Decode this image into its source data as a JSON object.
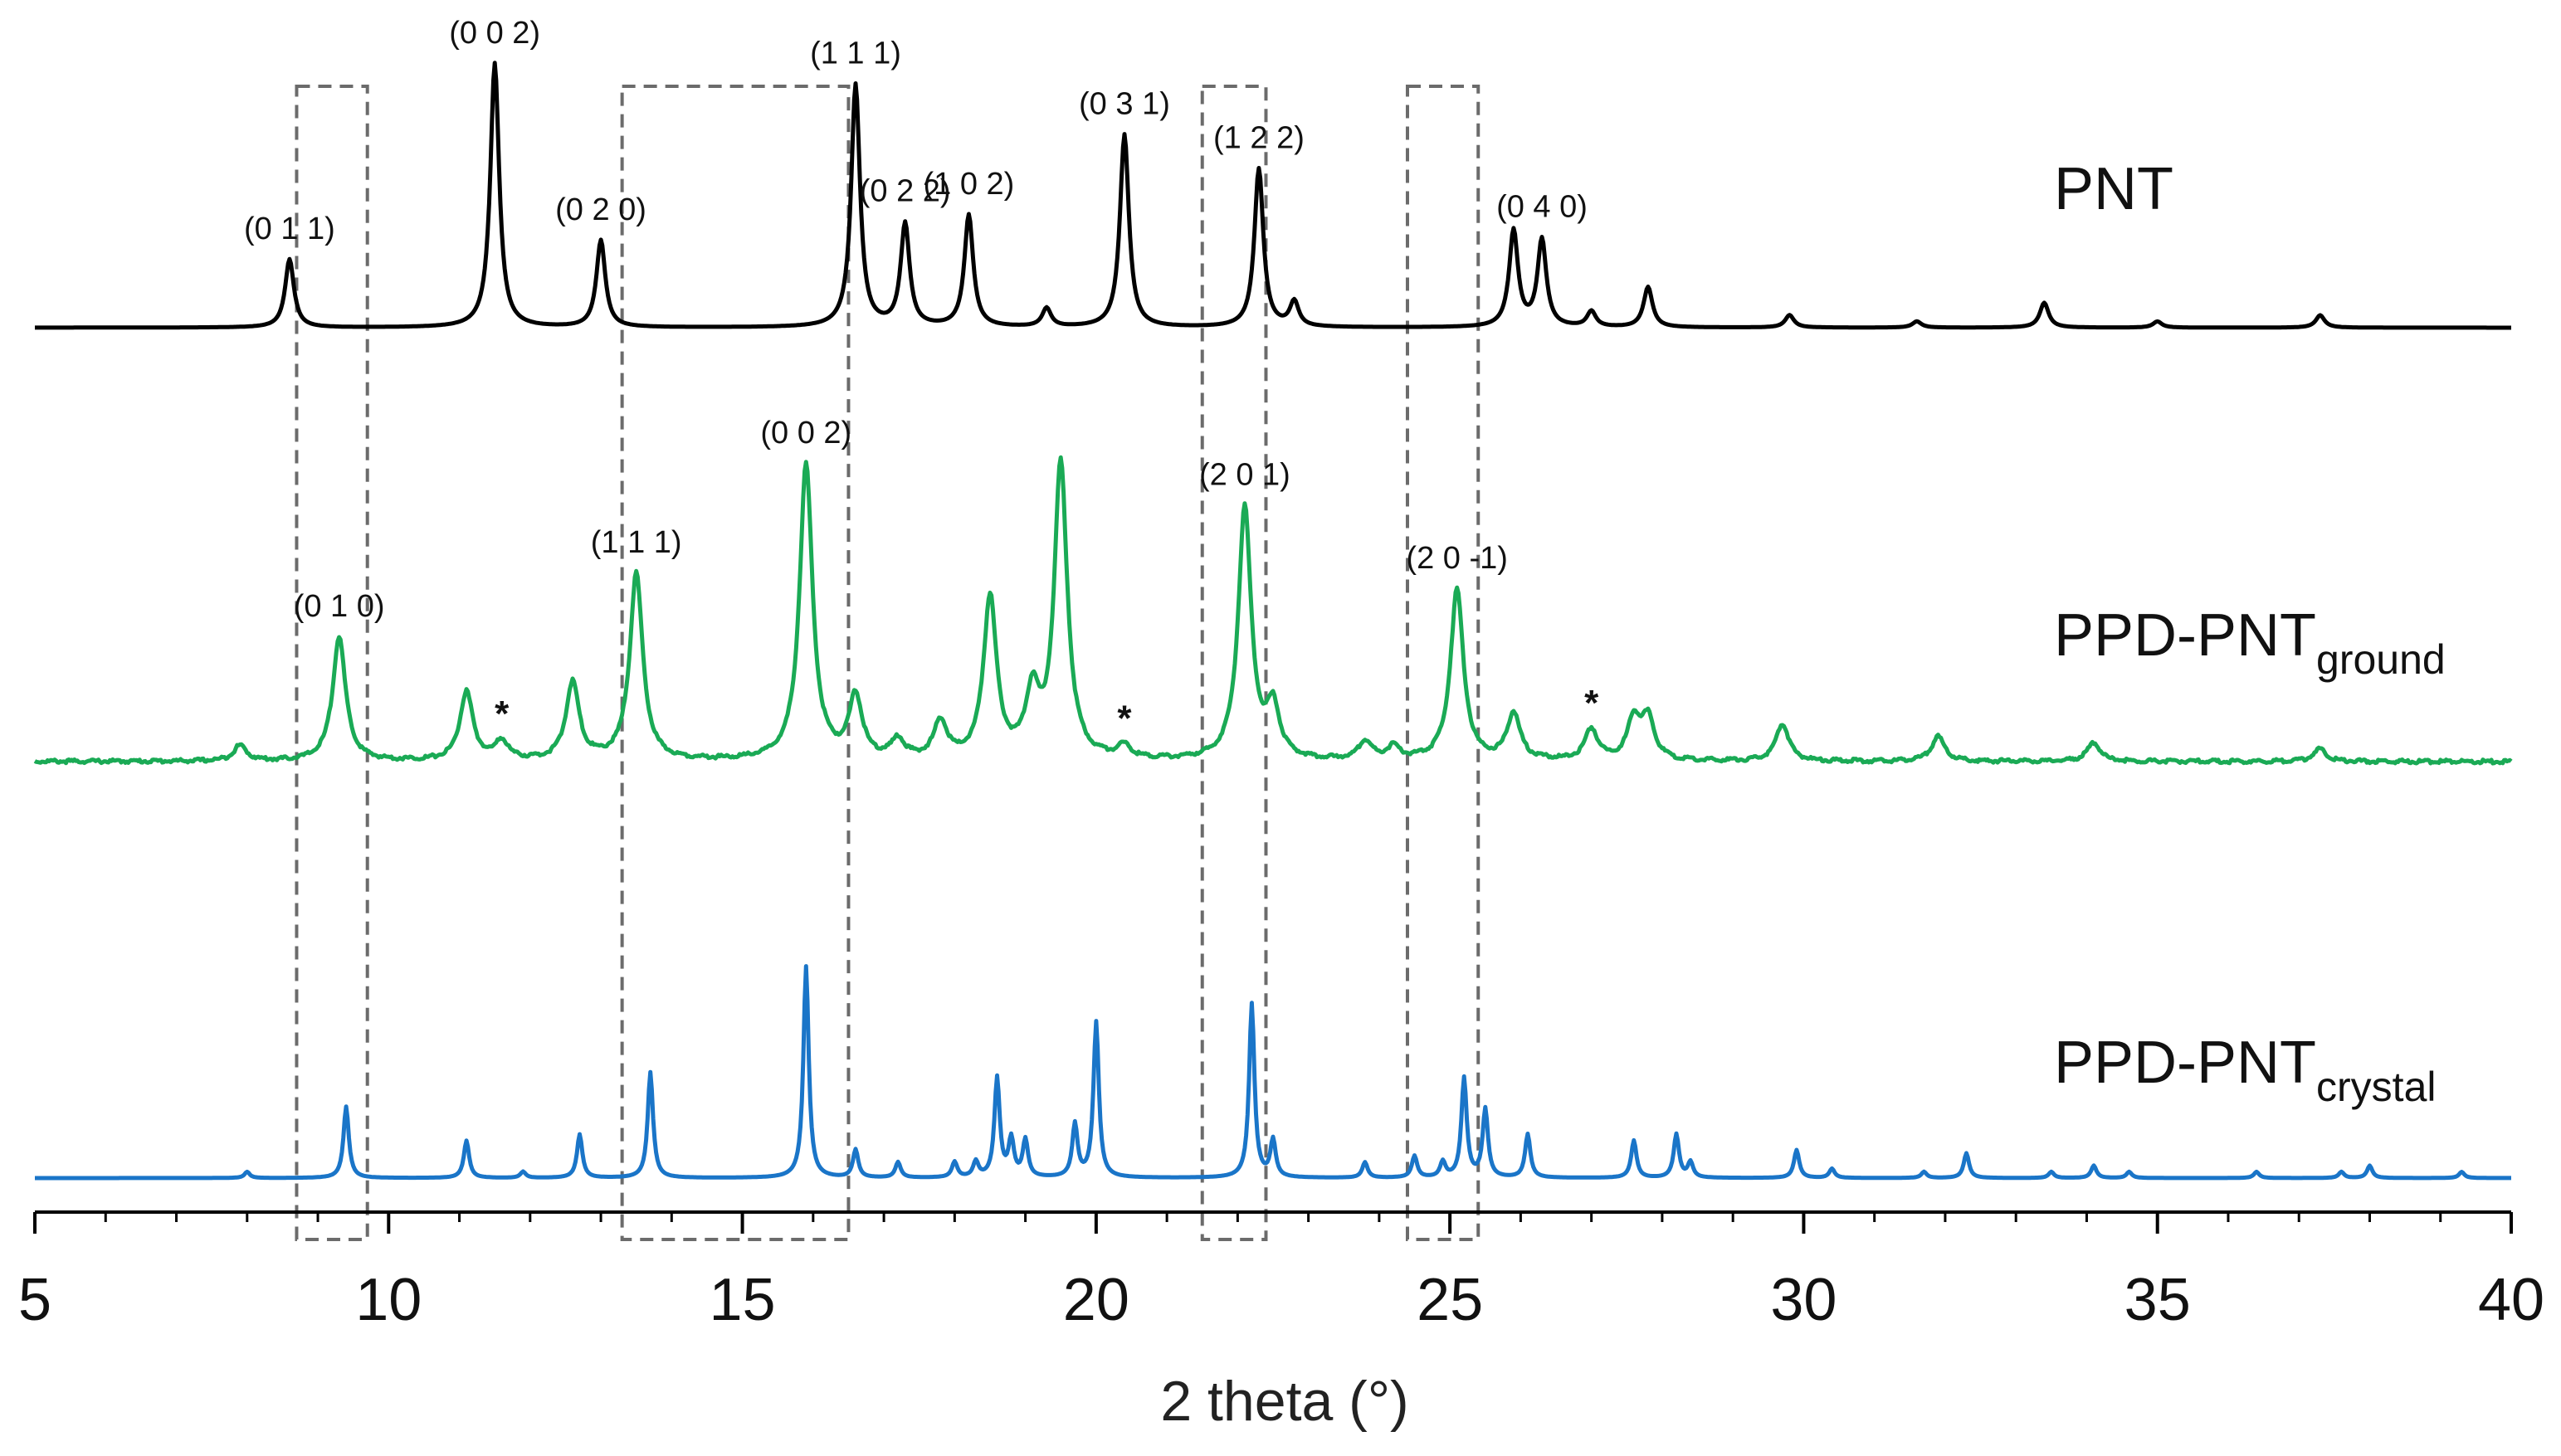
{
  "chart_data": {
    "type": "line",
    "title": "",
    "xlabel": "2 theta (°)",
    "ylabel": "",
    "xlim": [
      5,
      40
    ],
    "xticks": [
      5,
      10,
      15,
      20,
      25,
      30,
      35,
      40
    ],
    "grid": false,
    "legend": "none",
    "highlight_ranges": [
      [
        8.7,
        9.7
      ],
      [
        13.3,
        16.5
      ],
      [
        21.5,
        22.4
      ],
      [
        24.4,
        25.4
      ]
    ],
    "series": [
      {
        "name": "PNT",
        "name_sub": "",
        "color": "#000000",
        "peaks": [
          [
            8.6,
            0.22
          ],
          [
            11.5,
            0.85
          ],
          [
            13.0,
            0.28
          ],
          [
            16.6,
            0.78
          ],
          [
            17.3,
            0.33
          ],
          [
            18.2,
            0.36
          ],
          [
            19.3,
            0.06
          ],
          [
            20.4,
            0.62
          ],
          [
            22.3,
            0.51
          ],
          [
            22.8,
            0.08
          ],
          [
            25.9,
            0.31
          ],
          [
            26.3,
            0.28
          ],
          [
            27.0,
            0.05
          ],
          [
            27.8,
            0.13
          ],
          [
            29.8,
            0.04
          ],
          [
            31.6,
            0.02
          ],
          [
            33.4,
            0.08
          ],
          [
            35.0,
            0.02
          ],
          [
            37.3,
            0.04
          ]
        ],
        "labels": [
          {
            "text": "(0 1 1)",
            "x": 8.6
          },
          {
            "text": "(0 0 2)",
            "x": 11.5
          },
          {
            "text": "(0 2 0)",
            "x": 13.0
          },
          {
            "text": "(1 1 1)",
            "x": 16.6
          },
          {
            "text": "(0 2 2)",
            "x": 17.3
          },
          {
            "text": "(1 0 2)",
            "x": 18.2
          },
          {
            "text": "(0 3 1)",
            "x": 20.4
          },
          {
            "text": "(1 2 2)",
            "x": 22.3
          },
          {
            "text": "(0 4 0)",
            "x": 26.3
          }
        ]
      },
      {
        "name": "PPD-PNT",
        "name_sub": "ground",
        "color": "#1aaa55",
        "peaks": [
          [
            7.9,
            0.05
          ],
          [
            9.3,
            0.4
          ],
          [
            11.1,
            0.22
          ],
          [
            11.6,
            0.06
          ],
          [
            12.6,
            0.25
          ],
          [
            13.5,
            0.6
          ],
          [
            15.9,
            0.95
          ],
          [
            16.6,
            0.2
          ],
          [
            17.2,
            0.06
          ],
          [
            17.8,
            0.12
          ],
          [
            18.5,
            0.52
          ],
          [
            19.1,
            0.2
          ],
          [
            19.5,
            0.95
          ],
          [
            20.4,
            0.04
          ],
          [
            22.1,
            0.81
          ],
          [
            22.5,
            0.16
          ],
          [
            23.8,
            0.06
          ],
          [
            24.2,
            0.04
          ],
          [
            25.1,
            0.55
          ],
          [
            25.9,
            0.15
          ],
          [
            27.0,
            0.1
          ],
          [
            27.6,
            0.13
          ],
          [
            27.8,
            0.13
          ],
          [
            29.7,
            0.12
          ],
          [
            31.9,
            0.08
          ],
          [
            34.1,
            0.06
          ],
          [
            37.3,
            0.04
          ]
        ],
        "labels": [
          {
            "text": "(0 1 0)",
            "x": 9.3
          },
          {
            "text": "(1 1 1)",
            "x": 13.5
          },
          {
            "text": "(0 0 2)",
            "x": 15.9
          },
          {
            "text": "(2 0 1)",
            "x": 22.1
          },
          {
            "text": "(2 0 -1)",
            "x": 25.1
          }
        ],
        "markers": [
          {
            "text": "*",
            "x": 11.6
          },
          {
            "text": "*",
            "x": 20.4
          },
          {
            "text": "*",
            "x": 27.0
          }
        ]
      },
      {
        "name": "PPD-PNT",
        "name_sub": "crystal",
        "color": "#1a75c8",
        "peaks": [
          [
            8.0,
            0.02
          ],
          [
            9.4,
            0.23
          ],
          [
            11.1,
            0.12
          ],
          [
            11.9,
            0.02
          ],
          [
            12.7,
            0.14
          ],
          [
            13.7,
            0.34
          ],
          [
            15.9,
            0.68
          ],
          [
            16.6,
            0.09
          ],
          [
            17.2,
            0.05
          ],
          [
            18.0,
            0.05
          ],
          [
            18.3,
            0.05
          ],
          [
            18.6,
            0.32
          ],
          [
            18.8,
            0.12
          ],
          [
            19.0,
            0.12
          ],
          [
            19.7,
            0.17
          ],
          [
            20.0,
            0.5
          ],
          [
            22.2,
            0.56
          ],
          [
            22.5,
            0.12
          ],
          [
            23.8,
            0.05
          ],
          [
            24.5,
            0.07
          ],
          [
            24.9,
            0.05
          ],
          [
            25.2,
            0.32
          ],
          [
            25.5,
            0.22
          ],
          [
            26.1,
            0.14
          ],
          [
            27.6,
            0.12
          ],
          [
            28.2,
            0.14
          ],
          [
            28.4,
            0.05
          ],
          [
            29.9,
            0.09
          ],
          [
            30.4,
            0.03
          ],
          [
            31.7,
            0.02
          ],
          [
            32.3,
            0.08
          ],
          [
            33.5,
            0.02
          ],
          [
            34.1,
            0.04
          ],
          [
            34.6,
            0.02
          ],
          [
            36.4,
            0.02
          ],
          [
            37.6,
            0.02
          ],
          [
            38.0,
            0.04
          ],
          [
            39.3,
            0.02
          ]
        ]
      }
    ]
  }
}
